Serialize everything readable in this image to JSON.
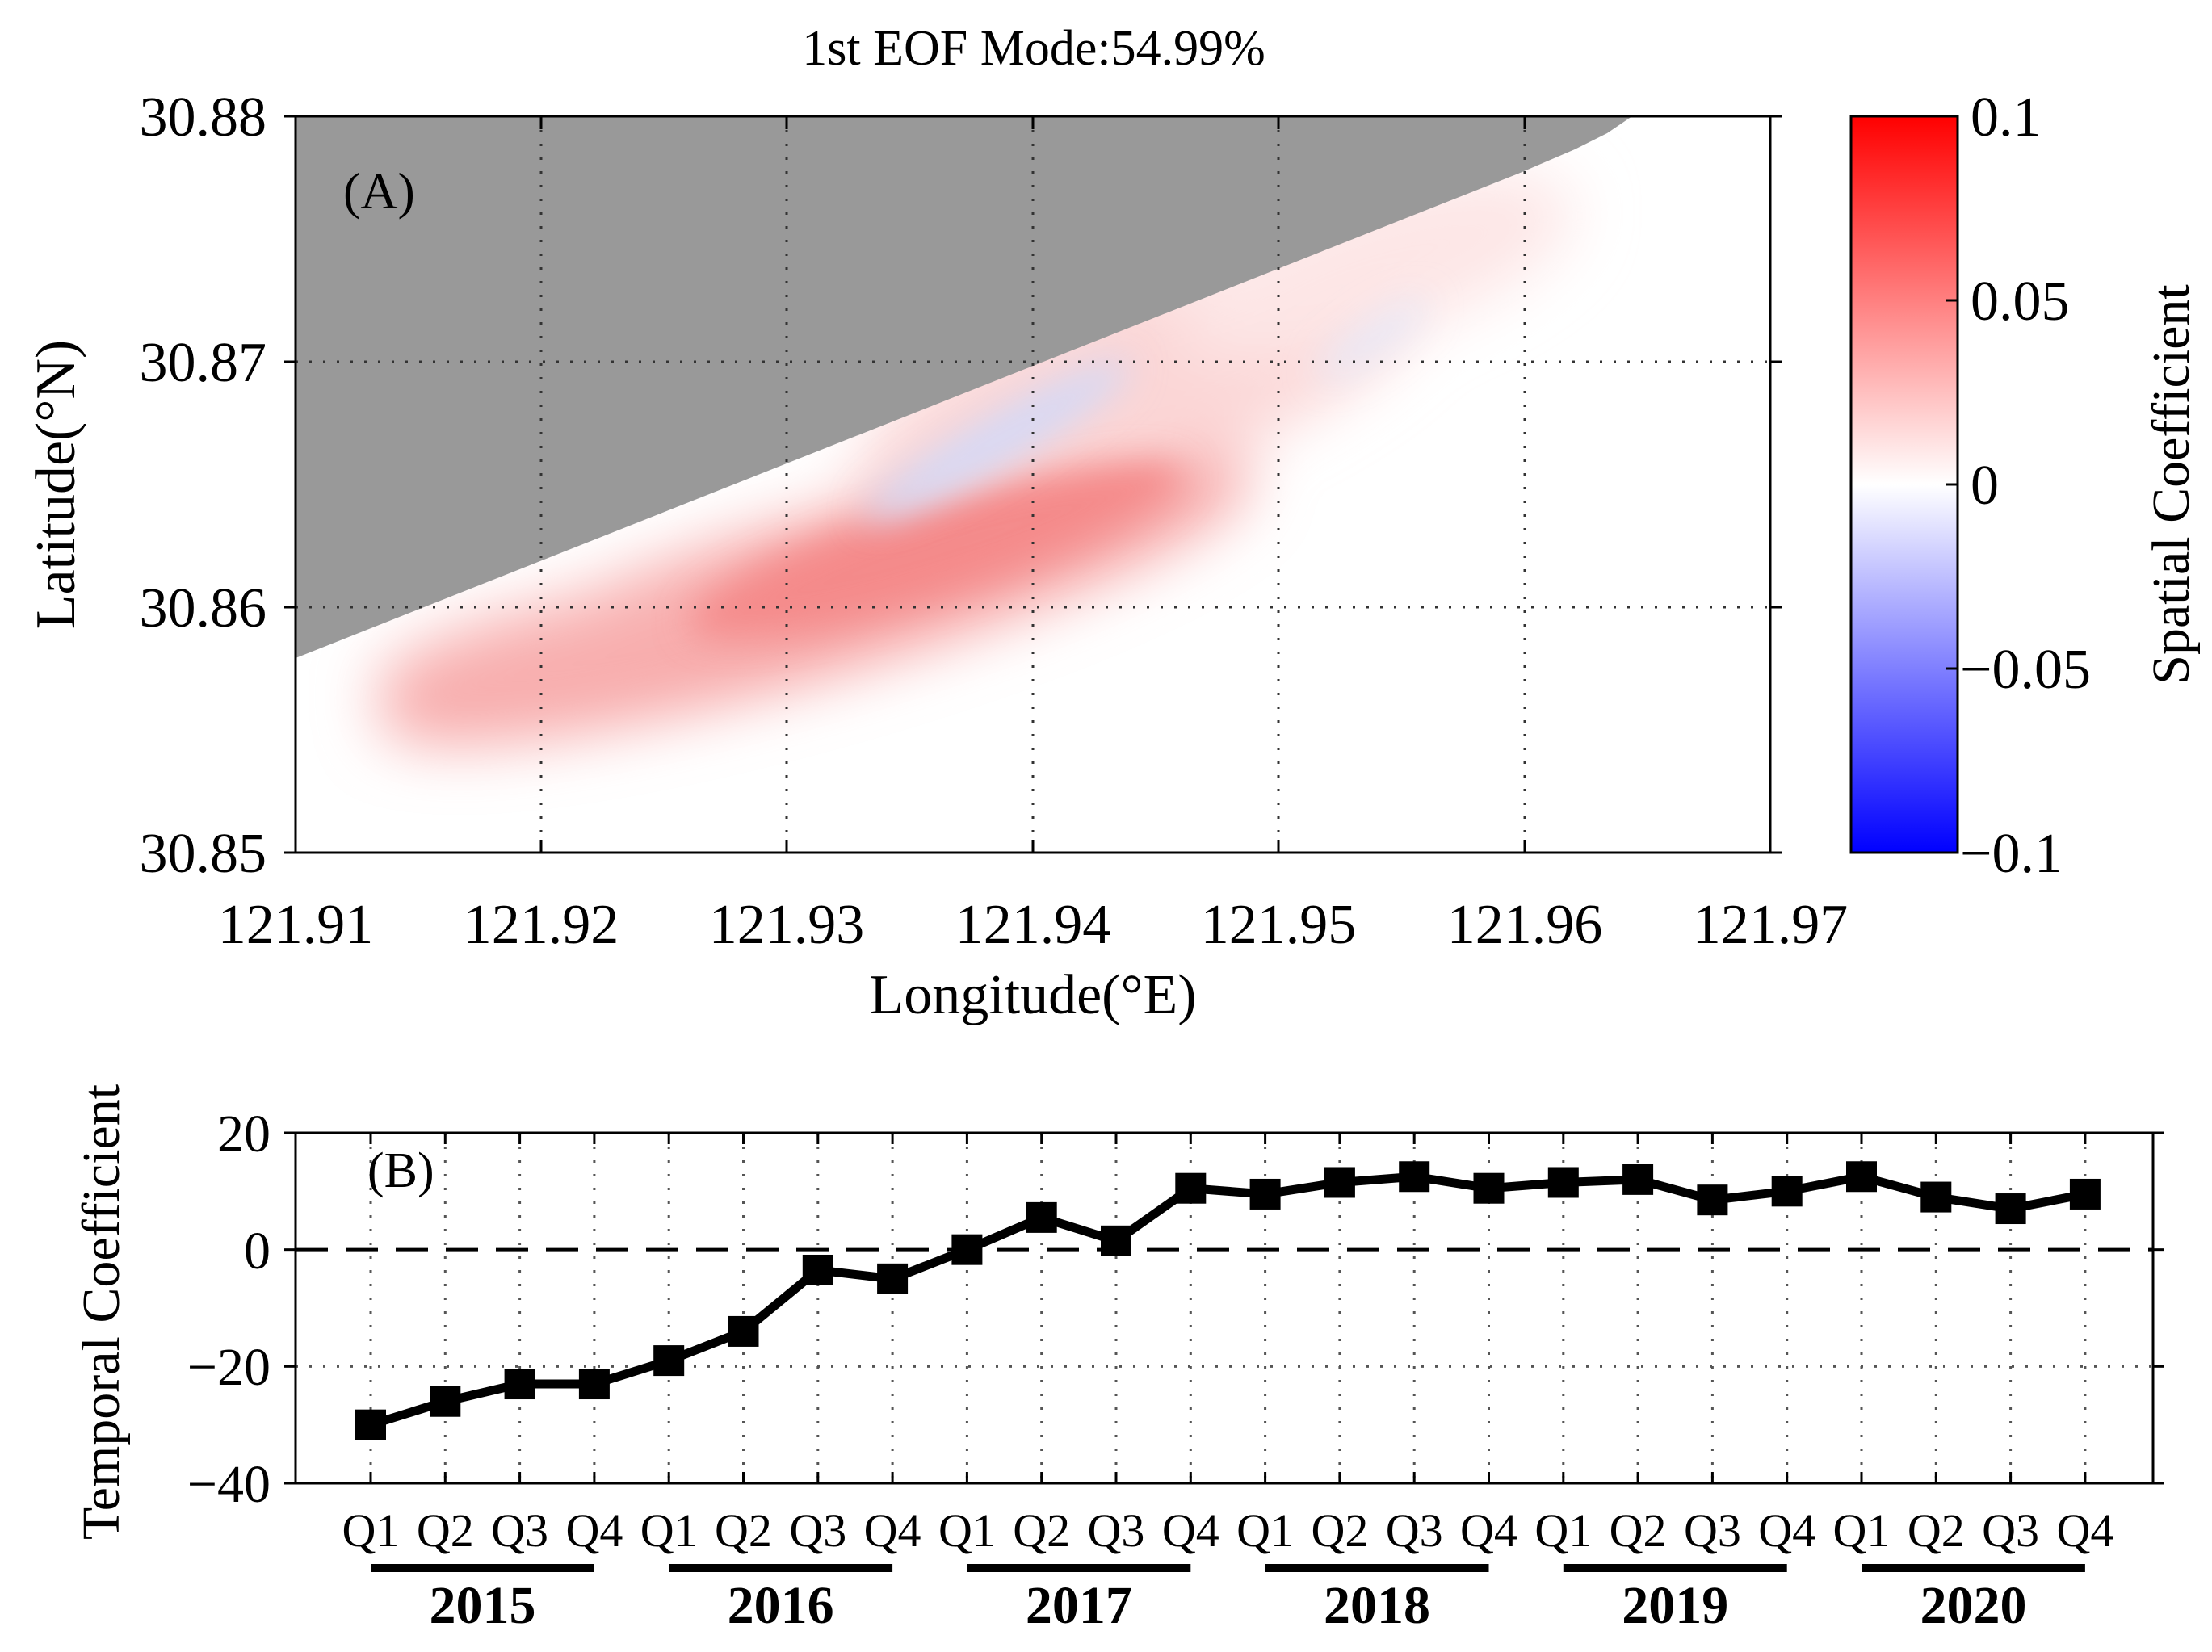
{
  "chart_data": [
    {
      "type": "heatmap",
      "panel_label": "(A)",
      "title": "1st EOF Mode:54.99%",
      "xlabel": "Longitude(°E)",
      "ylabel": "Latitude(°N)",
      "xlim": [
        121.91,
        121.97
      ],
      "ylim": [
        30.85,
        30.88
      ],
      "x_ticks": [
        121.91,
        121.92,
        121.93,
        121.94,
        121.95,
        121.96,
        121.97
      ],
      "x_tick_labels": [
        "121.91",
        "121.92",
        "121.93",
        "121.94",
        "121.95",
        "121.96",
        "121.97"
      ],
      "y_ticks": [
        30.85,
        30.86,
        30.87,
        30.88
      ],
      "y_tick_labels": [
        "30.85",
        "30.86",
        "30.87",
        "30.88"
      ],
      "grid": true,
      "land_mask_boundary": [
        [
          121.91,
          30.858
        ],
        [
          121.92,
          30.8617
        ],
        [
          121.93,
          30.8655
        ],
        [
          121.94,
          30.8693
        ],
        [
          121.95,
          30.8731
        ],
        [
          121.96,
          30.8768
        ],
        [
          121.962,
          30.8775
        ],
        [
          121.9635,
          30.8787
        ],
        [
          121.9645,
          30.88
        ]
      ],
      "features": [
        {
          "kind": "positive",
          "center": [
            121.931,
            30.8622
          ],
          "value": 0.035
        },
        {
          "kind": "positive",
          "center": [
            121.92,
            30.8585
          ],
          "value": 0.03
        },
        {
          "kind": "negative",
          "center": [
            121.9375,
            30.8675
          ],
          "value": -0.015
        },
        {
          "kind": "negative",
          "center": [
            121.955,
            30.8705
          ],
          "value": -0.005
        }
      ],
      "colorbar": {
        "label": "Spatial Coefficient",
        "range": [
          -0.1,
          0.1
        ],
        "ticks": [
          0.1,
          0.05,
          0,
          -0.05,
          -0.1
        ],
        "tick_labels": [
          "0.1",
          "0.05",
          "0",
          "−0.05",
          "−0.1"
        ],
        "colors": [
          "#0000ff",
          "#ffffff",
          "#ff0000"
        ]
      },
      "land_color": "#999999"
    },
    {
      "type": "line",
      "panel_label": "(B)",
      "ylabel": "Temporal Coefficient",
      "ylim": [
        -40,
        20
      ],
      "y_ticks": [
        20,
        0,
        -20,
        -40
      ],
      "y_tick_labels": [
        "20",
        "0",
        "−20",
        "−40"
      ],
      "categories": [
        "Q1",
        "Q2",
        "Q3",
        "Q4",
        "Q1",
        "Q2",
        "Q3",
        "Q4",
        "Q1",
        "Q2",
        "Q3",
        "Q4",
        "Q1",
        "Q2",
        "Q3",
        "Q4",
        "Q1",
        "Q2",
        "Q3",
        "Q4",
        "Q1",
        "Q2",
        "Q3",
        "Q4"
      ],
      "years": [
        "2015",
        "2016",
        "2017",
        "2018",
        "2019",
        "2020"
      ],
      "series": [
        {
          "name": "Temporal Coefficient",
          "values": [
            -30,
            -26,
            -23,
            -23,
            -19,
            -14,
            -3.5,
            -5,
            0,
            5.5,
            1.5,
            10.5,
            9.5,
            11.5,
            12.5,
            10.5,
            11.5,
            12,
            8.5,
            10,
            12.5,
            9,
            7,
            9.5
          ]
        }
      ],
      "reference_line": 0,
      "marker": "square"
    }
  ]
}
